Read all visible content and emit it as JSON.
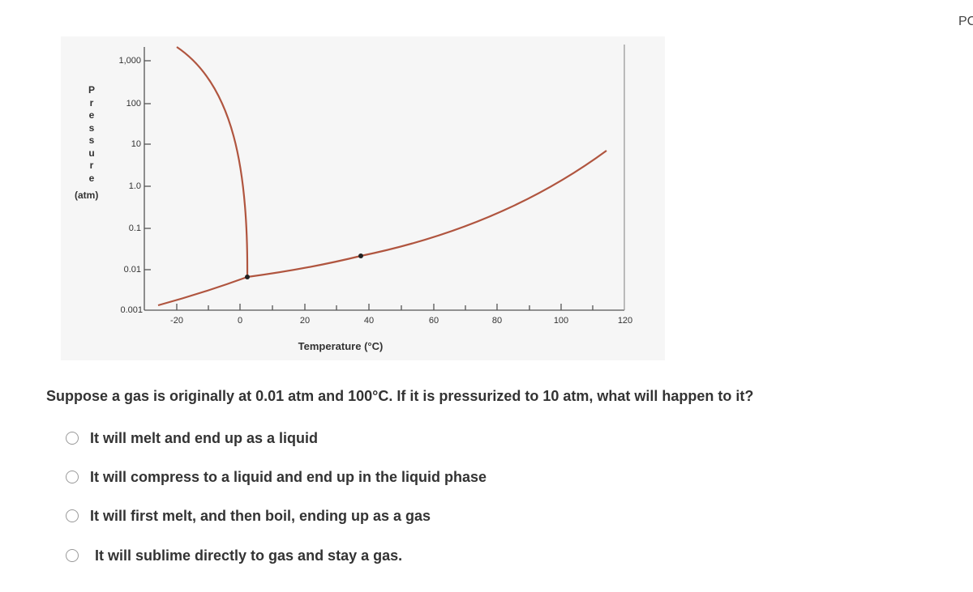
{
  "header": {
    "corner": "PC"
  },
  "diagram": {
    "y_label": "Pressure",
    "y_unit": "(atm)",
    "yticks": [
      "1,000",
      "100",
      "10",
      "1.0",
      "0.1",
      "0.01",
      "0.001"
    ],
    "xticks": [
      "-20",
      "0",
      "20",
      "40",
      "60",
      "80",
      "100",
      "120"
    ],
    "x_label": "Temperature (°C)"
  },
  "question": {
    "text": "Suppose a gas is originally at 0.01 atm and 100°C. If it is pressurized to 10 atm, what will happen to it?",
    "options": [
      "It will melt and end up as a liquid",
      "It will compress to a liquid and end up in the liquid phase",
      "It will first melt, and then boil, ending up as a gas",
      "It will sublime directly to gas and stay a gas."
    ]
  }
}
